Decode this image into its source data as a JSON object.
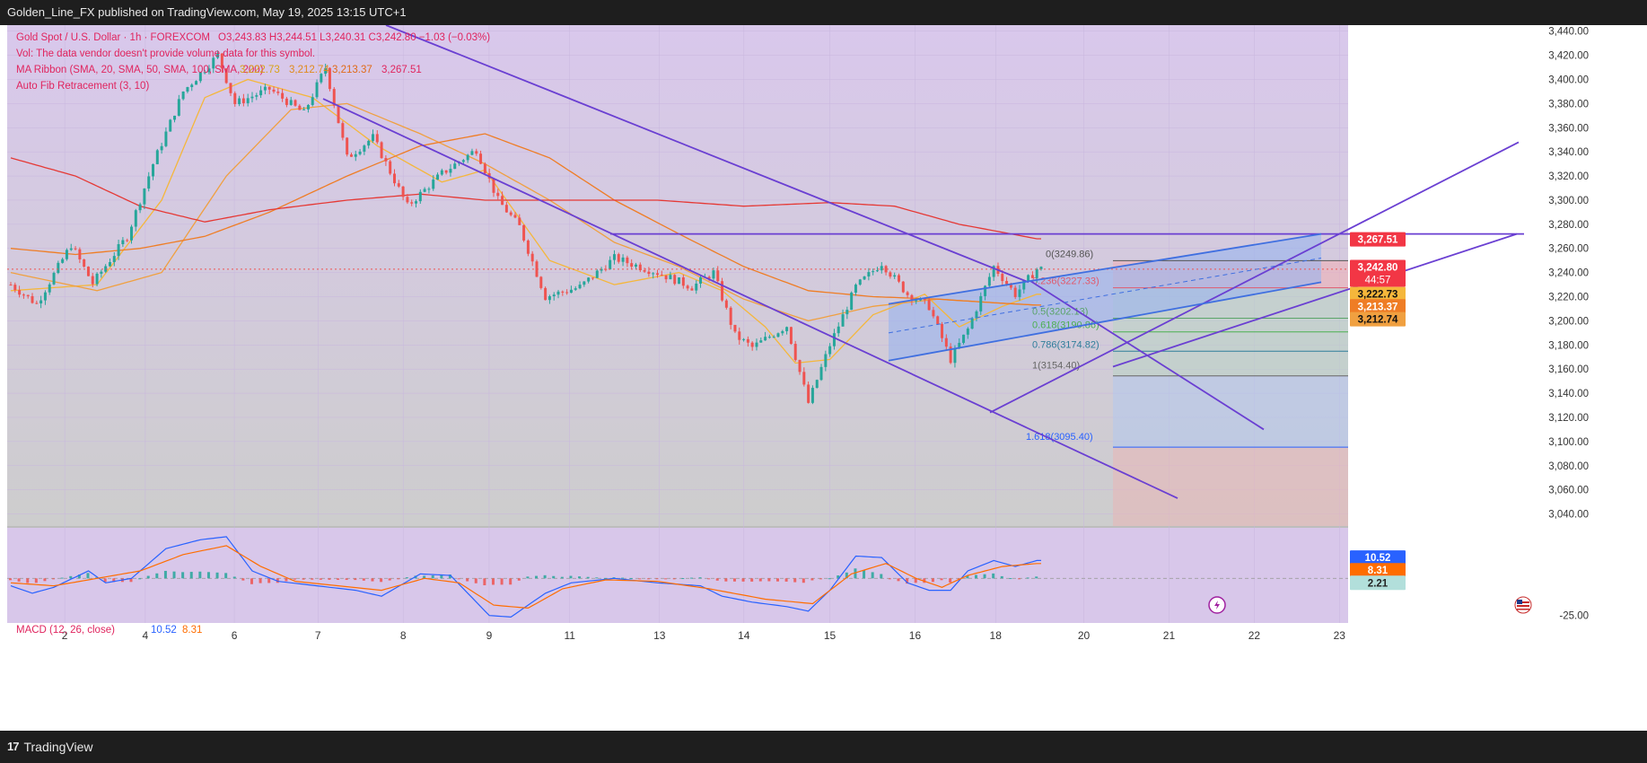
{
  "header": {
    "published": "Golden_Line_FX published on TradingView.com, May 19, 2025 13:15 UTC+1"
  },
  "footer": {
    "brand": "TradingView",
    "logo": "tv-logo-icon"
  },
  "legend": {
    "line1": {
      "symbol": "Gold Spot / U.S. Dollar · 1h · FOREXCOM",
      "ohlc": "O3,243.83  H3,244.51  L3,240.31  C3,242.80  −1.03 (−0.03%)"
    },
    "line2": "Vol: The data vendor doesn't provide volume data for this symbol.",
    "line3": {
      "label": "MA Ribbon (SMA, 20, SMA, 50, SMA, 100, SMA, 200)",
      "v1": "3,222.73",
      "v2": "3,212.74",
      "v3": "3,213.37",
      "v4": "3,267.51"
    },
    "line4": "Auto Fib Retracement (3, 10)",
    "macd": {
      "label": "MACD (12, 26, close)",
      "v1": "10.52",
      "v2": "8.31"
    }
  },
  "colors": {
    "upper_bg": "#d9c8ec",
    "lower_bg": "#cdcdcd",
    "macd_bg": "#d8c7ea",
    "up": "#26a69a",
    "down": "#ef5350",
    "channel": "#6a3fd2",
    "rising": "#3f6fe0",
    "ma20": "#f5b73b",
    "ma50": "#f0a040",
    "ma100": "#ef7d25",
    "ma200": "#e53935",
    "macd_line": "#2962ff",
    "signal_line": "#ff6d00"
  },
  "chart_data": [
    {
      "type": "candlestick",
      "title": "Gold Spot / U.S. Dollar · 1h · FOREXCOM",
      "xlabel": "",
      "ylabel": "",
      "ylim": [
        3030,
        3445
      ],
      "x_ticks": [
        "2",
        "4",
        "6",
        "7",
        "8",
        "9",
        "11",
        "13",
        "14",
        "15",
        "16",
        "18",
        "20",
        "21",
        "22",
        "23"
      ],
      "y_ticks": [
        "3,440.00",
        "3,420.00",
        "3,400.00",
        "3,380.00",
        "3,360.00",
        "3,340.00",
        "3,320.00",
        "3,300.00",
        "3,280.00",
        "3,260.00",
        "3,240.00",
        "3,220.00",
        "3,200.00",
        "3,180.00",
        "3,160.00",
        "3,140.00",
        "3,120.00",
        "3,100.00",
        "3,080.00",
        "3,060.00",
        "3,040.00"
      ],
      "price_tags": [
        {
          "label": "3,267.51",
          "value": 3267.51,
          "color": "#f23645"
        },
        {
          "label": "3,242.80",
          "value": 3242.8,
          "color": "#f23645",
          "sub": "44:57"
        },
        {
          "label": "3,222.73",
          "value": 3222.73,
          "color": "#f5b73b"
        },
        {
          "label": "3,213.37",
          "value": 3213.37,
          "color": "#ef7d25"
        },
        {
          "label": "3,212.74",
          "value": 3212.74,
          "color": "#f0a040"
        }
      ],
      "fib_levels": [
        {
          "label": "0(3249.86)",
          "value": 3249.86
        },
        {
          "label": "0.236(3227.33)",
          "value": 3227.33
        },
        {
          "label": "0.5(3202.13)",
          "value": 3202.13
        },
        {
          "label": "0.618(3190.86)",
          "value": 3190.86
        },
        {
          "label": "0.786(3174.82)",
          "value": 3174.82
        },
        {
          "label": "1(3154.40)",
          "value": 3154.4
        },
        {
          "label": "1.618(3095.40)",
          "value": 3095.4
        }
      ],
      "hline": 3272,
      "last_close": 3242.8,
      "series": [
        {
          "name": "Gold Spot / U.S. Dollar",
          "kind": "candles",
          "anchors": [
            [
              0,
              3230
            ],
            [
              6,
              3214
            ],
            [
              14,
              3263
            ],
            [
              19,
              3231
            ],
            [
              27,
              3270
            ],
            [
              33,
              3330
            ],
            [
              40,
              3390
            ],
            [
              48,
              3420
            ],
            [
              52,
              3380
            ],
            [
              60,
              3392
            ],
            [
              68,
              3372
            ],
            [
              73,
              3410
            ],
            [
              78,
              3335
            ],
            [
              84,
              3352
            ],
            [
              92,
              3295
            ],
            [
              100,
              3322
            ],
            [
              108,
              3342
            ],
            [
              113,
              3300
            ],
            [
              118,
              3278
            ],
            [
              124,
              3220
            ],
            [
              132,
              3228
            ],
            [
              140,
              3252
            ],
            [
              150,
              3240
            ],
            [
              158,
              3228
            ],
            [
              163,
              3240
            ],
            [
              168,
              3188
            ],
            [
              172,
              3178
            ],
            [
              180,
              3196
            ],
            [
              185,
              3132
            ],
            [
              190,
              3180
            ],
            [
              196,
              3228
            ],
            [
              202,
              3248
            ],
            [
              208,
              3222
            ],
            [
              213,
              3212
            ],
            [
              218,
              3168
            ],
            [
              222,
              3193
            ],
            [
              228,
              3245
            ],
            [
              233,
              3222
            ],
            [
              238,
              3243
            ]
          ]
        },
        {
          "name": "SMA 20",
          "anchors": [
            [
              0,
              3225
            ],
            [
              20,
              3230
            ],
            [
              35,
              3300
            ],
            [
              45,
              3385
            ],
            [
              55,
              3400
            ],
            [
              70,
              3385
            ],
            [
              85,
              3345
            ],
            [
              100,
              3315
            ],
            [
              110,
              3325
            ],
            [
              125,
              3250
            ],
            [
              140,
              3230
            ],
            [
              155,
              3240
            ],
            [
              165,
              3225
            ],
            [
              175,
              3195
            ],
            [
              182,
              3165
            ],
            [
              190,
              3168
            ],
            [
              200,
              3205
            ],
            [
              212,
              3222
            ],
            [
              220,
              3195
            ],
            [
              230,
              3212
            ],
            [
              238,
              3222
            ]
          ]
        },
        {
          "name": "SMA 50",
          "anchors": [
            [
              0,
              3240
            ],
            [
              20,
              3225
            ],
            [
              35,
              3240
            ],
            [
              50,
              3320
            ],
            [
              65,
              3375
            ],
            [
              78,
              3380
            ],
            [
              95,
              3355
            ],
            [
              110,
              3330
            ],
            [
              125,
              3300
            ],
            [
              140,
              3265
            ],
            [
              155,
              3245
            ],
            [
              170,
              3218
            ],
            [
              185,
              3200
            ],
            [
              200,
              3212
            ],
            [
              215,
              3218
            ],
            [
              228,
              3215
            ],
            [
              238,
              3213
            ]
          ]
        },
        {
          "name": "SMA 100",
          "anchors": [
            [
              0,
              3260
            ],
            [
              15,
              3255
            ],
            [
              30,
              3260
            ],
            [
              45,
              3270
            ],
            [
              60,
              3290
            ],
            [
              78,
              3320
            ],
            [
              95,
              3345
            ],
            [
              110,
              3355
            ],
            [
              125,
              3335
            ],
            [
              140,
              3300
            ],
            [
              155,
              3272
            ],
            [
              170,
              3245
            ],
            [
              185,
              3225
            ],
            [
              200,
              3220
            ],
            [
              215,
              3218
            ],
            [
              228,
              3215
            ],
            [
              238,
              3213
            ]
          ]
        },
        {
          "name": "SMA 200",
          "anchors": [
            [
              0,
              3335
            ],
            [
              15,
              3320
            ],
            [
              30,
              3295
            ],
            [
              45,
              3282
            ],
            [
              60,
              3292
            ],
            [
              78,
              3300
            ],
            [
              95,
              3305
            ],
            [
              110,
              3300
            ],
            [
              130,
              3300
            ],
            [
              150,
              3300
            ],
            [
              170,
              3295
            ],
            [
              190,
              3298
            ],
            [
              205,
              3295
            ],
            [
              220,
              3280
            ],
            [
              238,
              3268
            ]
          ]
        }
      ]
    },
    {
      "type": "line",
      "title": "MACD (12, 26, close)",
      "ylim": [
        -30,
        34
      ],
      "y_ticks": [
        "-25.00"
      ],
      "price_tags": [
        {
          "label": "10.52",
          "value": 10.52,
          "color": "#2962ff"
        },
        {
          "label": "8.31",
          "value": 8.31,
          "color": "#ff6d00"
        },
        {
          "label": "2.21",
          "value": 2.21,
          "color": "#b2dfdb"
        }
      ],
      "series": [
        {
          "name": "MACD",
          "anchors": [
            [
              0,
              -5
            ],
            [
              5,
              -10
            ],
            [
              10,
              -6
            ],
            [
              18,
              5
            ],
            [
              22,
              -3
            ],
            [
              28,
              0
            ],
            [
              36,
              20
            ],
            [
              44,
              26
            ],
            [
              50,
              28
            ],
            [
              56,
              5
            ],
            [
              62,
              -2
            ],
            [
              68,
              -4
            ],
            [
              74,
              -6
            ],
            [
              80,
              -8
            ],
            [
              86,
              -12
            ],
            [
              95,
              3
            ],
            [
              102,
              2
            ],
            [
              106,
              -10
            ],
            [
              111,
              -25
            ],
            [
              116,
              -26
            ],
            [
              124,
              -10
            ],
            [
              130,
              -3
            ],
            [
              140,
              0
            ],
            [
              150,
              -3
            ],
            [
              160,
              -5
            ],
            [
              165,
              -12
            ],
            [
              172,
              -16
            ],
            [
              180,
              -19
            ],
            [
              185,
              -22
            ],
            [
              190,
              -8
            ],
            [
              196,
              15
            ],
            [
              202,
              14
            ],
            [
              208,
              -3
            ],
            [
              213,
              -8
            ],
            [
              218,
              -8
            ],
            [
              222,
              5
            ],
            [
              228,
              12
            ],
            [
              233,
              8
            ],
            [
              238,
              12
            ]
          ]
        },
        {
          "name": "Signal",
          "anchors": [
            [
              0,
              -3
            ],
            [
              10,
              -5
            ],
            [
              20,
              0
            ],
            [
              30,
              5
            ],
            [
              40,
              16
            ],
            [
              50,
              22
            ],
            [
              58,
              8
            ],
            [
              66,
              -2
            ],
            [
              76,
              -5
            ],
            [
              86,
              -8
            ],
            [
              96,
              0
            ],
            [
              104,
              -3
            ],
            [
              112,
              -18
            ],
            [
              120,
              -20
            ],
            [
              128,
              -7
            ],
            [
              138,
              -1
            ],
            [
              150,
              -2
            ],
            [
              162,
              -7
            ],
            [
              175,
              -14
            ],
            [
              186,
              -17
            ],
            [
              195,
              3
            ],
            [
              203,
              10
            ],
            [
              210,
              0
            ],
            [
              216,
              -6
            ],
            [
              222,
              2
            ],
            [
              230,
              8
            ],
            [
              238,
              10
            ]
          ]
        }
      ]
    }
  ]
}
